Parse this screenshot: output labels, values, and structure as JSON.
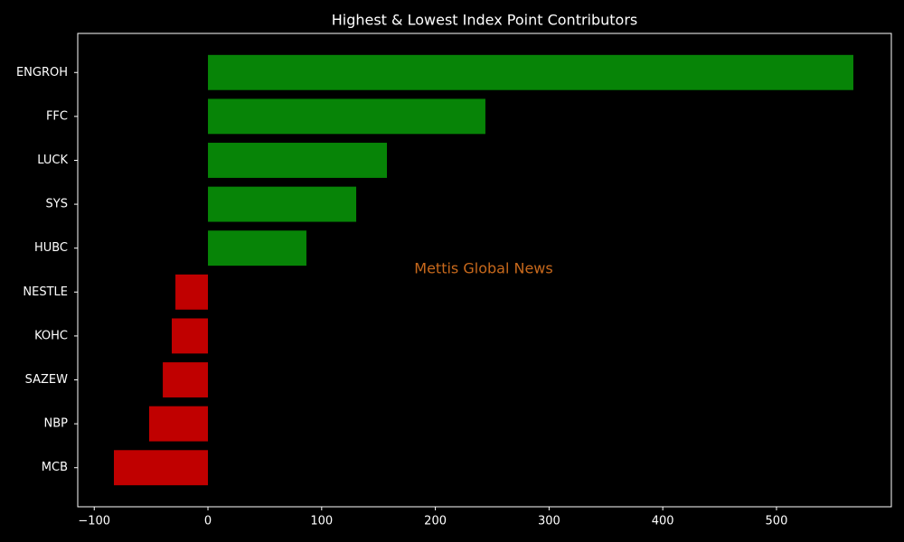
{
  "chart_data": {
    "type": "barh",
    "title": "Highest & Lowest Index Point Contributors",
    "annotation": "Mettis Global News",
    "categories": [
      "ENGROH",
      "FFC",
      "LUCK",
      "SYS",
      "HUBC",
      "NESTLE",
      "KOHC",
      "SAZEW",
      "NBP",
      "MCB"
    ],
    "values": [
      567.6,
      244,
      157.4,
      130.4,
      86.6,
      -28.6,
      -31.8,
      -39.7,
      -51.7,
      -82.7
    ],
    "colors": [
      "#078407",
      "#078407",
      "#078407",
      "#078407",
      "#078407",
      "#c00000",
      "#c00000",
      "#c00000",
      "#c00000",
      "#c00000"
    ],
    "xlim": [
      -114.5,
      601
    ],
    "xticks": [
      {
        "value": -100,
        "label": "−100"
      },
      0,
      100,
      200,
      300,
      400,
      500
    ],
    "grid": false
  }
}
